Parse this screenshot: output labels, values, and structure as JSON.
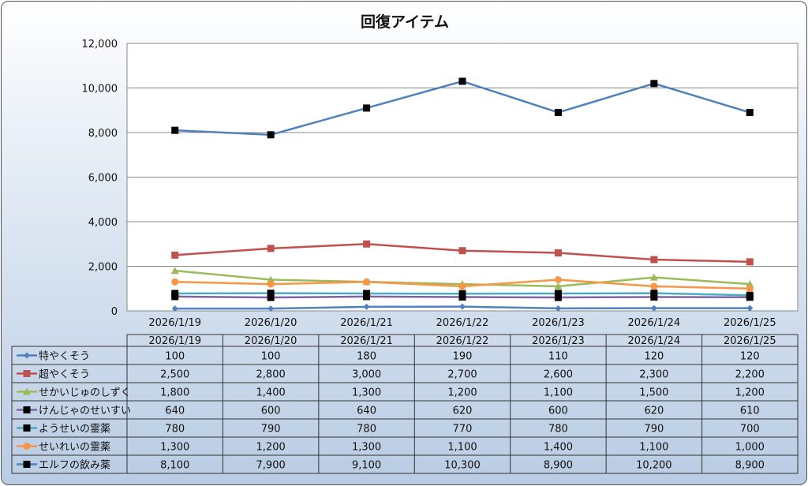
{
  "chart_data": {
    "type": "line",
    "title": "回復アイテム",
    "categories": [
      "2026/1/19",
      "2026/1/20",
      "2026/1/21",
      "2026/1/22",
      "2026/1/23",
      "2026/1/24",
      "2026/1/25"
    ],
    "ylim": [
      0,
      12000
    ],
    "yticks": [
      0,
      2000,
      4000,
      6000,
      8000,
      10000,
      12000
    ],
    "ytick_labels": [
      "0",
      "2,000",
      "4,000",
      "6,000",
      "8,000",
      "10,000",
      "12,000"
    ],
    "grid": true,
    "legend": "data-table",
    "series": [
      {
        "name": "特やくそう",
        "color": "#4f81bd",
        "marker": "diamond",
        "marker_color": "#4f81bd",
        "values": [
          100,
          100,
          180,
          190,
          110,
          120,
          120
        ],
        "labels": [
          "100",
          "100",
          "180",
          "190",
          "110",
          "120",
          "120"
        ]
      },
      {
        "name": "超やくそう",
        "color": "#c0504d",
        "marker": "square",
        "marker_color": "#c0504d",
        "values": [
          2500,
          2800,
          3000,
          2700,
          2600,
          2300,
          2200
        ],
        "labels": [
          "2,500",
          "2,800",
          "3,000",
          "2,700",
          "2,600",
          "2,300",
          "2,200"
        ]
      },
      {
        "name": "せかいじゅのしずく",
        "color": "#9bbb59",
        "marker": "triangle",
        "marker_color": "#9bbb59",
        "values": [
          1800,
          1400,
          1300,
          1200,
          1100,
          1500,
          1200
        ],
        "labels": [
          "1,800",
          "1,400",
          "1,300",
          "1,200",
          "1,100",
          "1,500",
          "1,200"
        ]
      },
      {
        "name": "けんじゃのせいすい",
        "color": "#8064a2",
        "marker": "square",
        "marker_color": "#000000",
        "values": [
          640,
          600,
          640,
          620,
          600,
          620,
          610
        ],
        "labels": [
          "640",
          "600",
          "640",
          "620",
          "600",
          "620",
          "610"
        ]
      },
      {
        "name": "ようせいの霊薬",
        "color": "#4bacc6",
        "marker": "square",
        "marker_color": "#000000",
        "values": [
          780,
          790,
          780,
          770,
          780,
          790,
          700
        ],
        "labels": [
          "780",
          "790",
          "780",
          "770",
          "780",
          "790",
          "700"
        ]
      },
      {
        "name": "せいれいの霊薬",
        "color": "#f79646",
        "marker": "circle",
        "marker_color": "#f79646",
        "values": [
          1300,
          1200,
          1300,
          1100,
          1400,
          1100,
          1000
        ],
        "labels": [
          "1,300",
          "1,200",
          "1,300",
          "1,100",
          "1,400",
          "1,100",
          "1,000"
        ]
      },
      {
        "name": "エルフの飲み薬",
        "color": "#4f81bd",
        "marker": "square",
        "marker_color": "#000000",
        "values": [
          8100,
          7900,
          9100,
          10300,
          8900,
          10200,
          8900
        ],
        "labels": [
          "8,100",
          "7,900",
          "9,100",
          "10,300",
          "8,900",
          "10,200",
          "8,900"
        ]
      }
    ]
  }
}
